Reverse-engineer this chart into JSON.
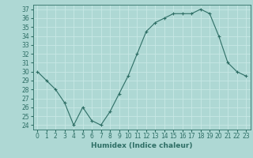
{
  "x": [
    0,
    1,
    2,
    3,
    4,
    5,
    6,
    7,
    8,
    9,
    10,
    11,
    12,
    13,
    14,
    15,
    16,
    17,
    18,
    19,
    20,
    21,
    22,
    23
  ],
  "y": [
    30,
    29,
    28,
    26.5,
    24,
    26,
    24.5,
    24,
    25.5,
    27.5,
    29.5,
    32,
    34.5,
    35.5,
    36,
    36.5,
    36.5,
    36.5,
    37,
    36.5,
    34,
    31,
    30,
    29.5
  ],
  "line_color": "#2e6e65",
  "marker_color": "#2e6e65",
  "bg_color": "#aed8d4",
  "grid_color": "#c8e8e5",
  "xlabel": "Humidex (Indice chaleur)",
  "ylabel_ticks": [
    24,
    25,
    26,
    27,
    28,
    29,
    30,
    31,
    32,
    33,
    34,
    35,
    36,
    37
  ],
  "xlim": [
    -0.5,
    23.5
  ],
  "ylim": [
    23.5,
    37.5
  ],
  "xticks": [
    0,
    1,
    2,
    3,
    4,
    5,
    6,
    7,
    8,
    9,
    10,
    11,
    12,
    13,
    14,
    15,
    16,
    17,
    18,
    19,
    20,
    21,
    22,
    23
  ],
  "tick_fontsize": 5.5,
  "label_fontsize": 6.5
}
